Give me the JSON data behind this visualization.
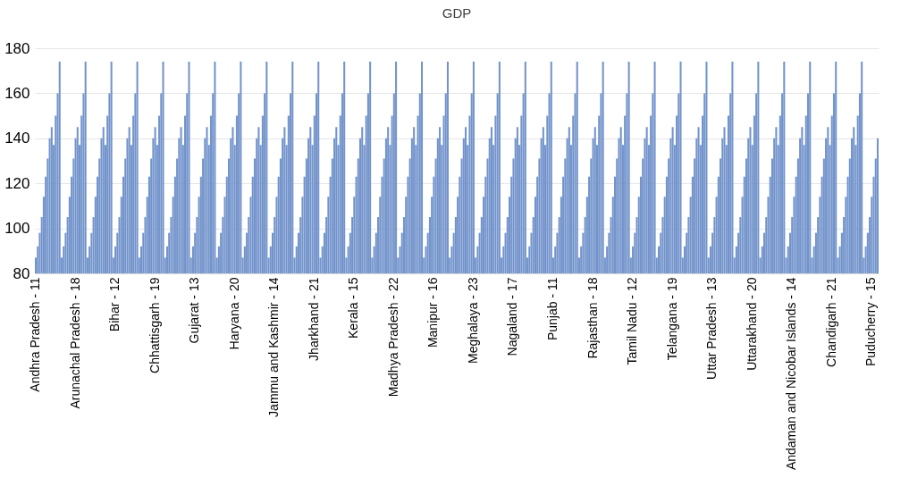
{
  "chart_data": {
    "type": "bar",
    "title": "GDP",
    "categories": [
      "Andhra Pradesh - 11",
      null,
      null,
      null,
      null,
      null,
      null,
      null,
      null,
      null,
      null,
      null,
      null,
      null,
      null,
      null,
      null,
      null,
      null,
      null,
      "Arunachal Pradesh - 18",
      null,
      null,
      null,
      null,
      null,
      null,
      null,
      null,
      null,
      null,
      null,
      null,
      null,
      null,
      null,
      null,
      null,
      null,
      null,
      "Bihar - 12",
      null,
      null,
      null,
      null,
      null,
      null,
      null,
      null,
      null,
      null,
      null,
      null,
      null,
      null,
      null,
      null,
      null,
      null,
      null,
      "Chhattisgarh - 19",
      null,
      null,
      null,
      null,
      null,
      null,
      null,
      null,
      null,
      null,
      null,
      null,
      null,
      null,
      null,
      null,
      null,
      null,
      null,
      "Gujarat - 13",
      null,
      null,
      null,
      null,
      null,
      null,
      null,
      null,
      null,
      null,
      null,
      null,
      null,
      null,
      null,
      null,
      null,
      null,
      null,
      "Haryana - 20",
      null,
      null,
      null,
      null,
      null,
      null,
      null,
      null,
      null,
      null,
      null,
      null,
      null,
      null,
      null,
      null,
      null,
      null,
      null,
      "Jammu and Kashmir - 14",
      null,
      null,
      null,
      null,
      null,
      null,
      null,
      null,
      null,
      null,
      null,
      null,
      null,
      null,
      null,
      null,
      null,
      null,
      null,
      "Jharkhand - 21",
      null,
      null,
      null,
      null,
      null,
      null,
      null,
      null,
      null,
      null,
      null,
      null,
      null,
      null,
      null,
      null,
      null,
      null,
      null,
      "Kerala - 15",
      null,
      null,
      null,
      null,
      null,
      null,
      null,
      null,
      null,
      null,
      null,
      null,
      null,
      null,
      null,
      null,
      null,
      null,
      null,
      "Madhya Pradesh - 22",
      null,
      null,
      null,
      null,
      null,
      null,
      null,
      null,
      null,
      null,
      null,
      null,
      null,
      null,
      null,
      null,
      null,
      null,
      null,
      "Manipur - 16",
      null,
      null,
      null,
      null,
      null,
      null,
      null,
      null,
      null,
      null,
      null,
      null,
      null,
      null,
      null,
      null,
      null,
      null,
      null,
      "Meghalaya - 23",
      null,
      null,
      null,
      null,
      null,
      null,
      null,
      null,
      null,
      null,
      null,
      null,
      null,
      null,
      null,
      null,
      null,
      null,
      null,
      "Nagaland - 17",
      null,
      null,
      null,
      null,
      null,
      null,
      null,
      null,
      null,
      null,
      null,
      null,
      null,
      null,
      null,
      null,
      null,
      null,
      null,
      "Punjab - 11",
      null,
      null,
      null,
      null,
      null,
      null,
      null,
      null,
      null,
      null,
      null,
      null,
      null,
      null,
      null,
      null,
      null,
      null,
      null,
      "Rajasthan - 18",
      null,
      null,
      null,
      null,
      null,
      null,
      null,
      null,
      null,
      null,
      null,
      null,
      null,
      null,
      null,
      null,
      null,
      null,
      null,
      "Tamil Nadu - 12",
      null,
      null,
      null,
      null,
      null,
      null,
      null,
      null,
      null,
      null,
      null,
      null,
      null,
      null,
      null,
      null,
      null,
      null,
      null,
      "Telangana - 19",
      null,
      null,
      null,
      null,
      null,
      null,
      null,
      null,
      null,
      null,
      null,
      null,
      null,
      null,
      null,
      null,
      null,
      null,
      null,
      "Uttar Pradesh - 13",
      null,
      null,
      null,
      null,
      null,
      null,
      null,
      null,
      null,
      null,
      null,
      null,
      null,
      null,
      null,
      null,
      null,
      null,
      null,
      "Uttarakhand - 20",
      null,
      null,
      null,
      null,
      null,
      null,
      null,
      null,
      null,
      null,
      null,
      null,
      null,
      null,
      null,
      null,
      null,
      null,
      null,
      "Andaman and Nicobar Islands - 14",
      null,
      null,
      null,
      null,
      null,
      null,
      null,
      null,
      null,
      null,
      null,
      null,
      null,
      null,
      null,
      null,
      null,
      null,
      null,
      "Chandigarh - 21",
      null,
      null,
      null,
      null,
      null,
      null,
      null,
      null,
      null,
      null,
      null,
      null,
      null,
      null,
      null,
      null,
      null,
      null,
      null,
      "Puducherry - 15",
      null,
      null,
      null
    ],
    "values": [
      87,
      92,
      98,
      105,
      114,
      123,
      131,
      140,
      145,
      137,
      150,
      160,
      174,
      87,
      92,
      98,
      105,
      114,
      123,
      131,
      140,
      145,
      137,
      150,
      160,
      174,
      87,
      92,
      98,
      105,
      114,
      123,
      131,
      140,
      145,
      137,
      150,
      160,
      174,
      87,
      92,
      98,
      105,
      114,
      123,
      131,
      140,
      145,
      137,
      150,
      160,
      174,
      87,
      92,
      98,
      105,
      114,
      123,
      131,
      140,
      145,
      137,
      150,
      160,
      174,
      87,
      92,
      98,
      105,
      114,
      123,
      131,
      140,
      145,
      137,
      150,
      160,
      174,
      87,
      92,
      98,
      105,
      114,
      123,
      131,
      140,
      145,
      137,
      150,
      160,
      174,
      87,
      92,
      98,
      105,
      114,
      123,
      131,
      140,
      145,
      137,
      150,
      160,
      174,
      87,
      92,
      98,
      105,
      114,
      123,
      131,
      140,
      145,
      137,
      150,
      160,
      174,
      87,
      92,
      98,
      105,
      114,
      123,
      131,
      140,
      145,
      137,
      150,
      160,
      174,
      87,
      92,
      98,
      105,
      114,
      123,
      131,
      140,
      145,
      137,
      150,
      160,
      174,
      87,
      92,
      98,
      105,
      114,
      123,
      131,
      140,
      145,
      137,
      150,
      160,
      174,
      87,
      92,
      98,
      105,
      114,
      123,
      131,
      140,
      145,
      137,
      150,
      160,
      174,
      87,
      92,
      98,
      105,
      114,
      123,
      131,
      140,
      145,
      137,
      150,
      160,
      174,
      87,
      92,
      98,
      105,
      114,
      123,
      131,
      140,
      145,
      137,
      150,
      160,
      174,
      87,
      92,
      98,
      105,
      114,
      123,
      131,
      140,
      145,
      137,
      150,
      160,
      174,
      87,
      92,
      98,
      105,
      114,
      123,
      131,
      140,
      145,
      137,
      150,
      160,
      174,
      87,
      92,
      98,
      105,
      114,
      123,
      131,
      140,
      145,
      137,
      150,
      160,
      174,
      87,
      92,
      98,
      105,
      114,
      123,
      131,
      140,
      145,
      137,
      150,
      160,
      174,
      87,
      92,
      98,
      105,
      114,
      123,
      131,
      140,
      145,
      137,
      150,
      160,
      174,
      87,
      92,
      98,
      105,
      114,
      123,
      131,
      140,
      145,
      137,
      150,
      160,
      174,
      87,
      92,
      98,
      105,
      114,
      123,
      131,
      140,
      145,
      137,
      150,
      160,
      174,
      87,
      92,
      98,
      105,
      114,
      123,
      131,
      140,
      145,
      137,
      150,
      160,
      174,
      87,
      92,
      98,
      105,
      114,
      123,
      131,
      140,
      145,
      137,
      150,
      160,
      174,
      87,
      92,
      98,
      105,
      114,
      123,
      131,
      140,
      145,
      137,
      150,
      160,
      174,
      87,
      92,
      98,
      105,
      114,
      123,
      131,
      140,
      145,
      137,
      150,
      160,
      174,
      87,
      92,
      98,
      105,
      114,
      123,
      131,
      140,
      145,
      137,
      150,
      160,
      174,
      87,
      92,
      98,
      105,
      114,
      123,
      131,
      140,
      145,
      137,
      150,
      160,
      174,
      87,
      92,
      98,
      105,
      114,
      123,
      131,
      140,
      145,
      137,
      150,
      160,
      174,
      87,
      92,
      98,
      105,
      114,
      123,
      131,
      140,
      145,
      137,
      150,
      160,
      174,
      87,
      92,
      98,
      105,
      114,
      123,
      131,
      140,
      145,
      137,
      150,
      160,
      174,
      87,
      92,
      98,
      105,
      114,
      123,
      131,
      140,
      145,
      137,
      150,
      160,
      174,
      87,
      92,
      98,
      105,
      114,
      123,
      131,
      140
    ],
    "color": "#7293cb",
    "ylim": [
      80,
      180
    ],
    "yticks": [
      80,
      100,
      120,
      140,
      160,
      180
    ],
    "grid": "y"
  }
}
